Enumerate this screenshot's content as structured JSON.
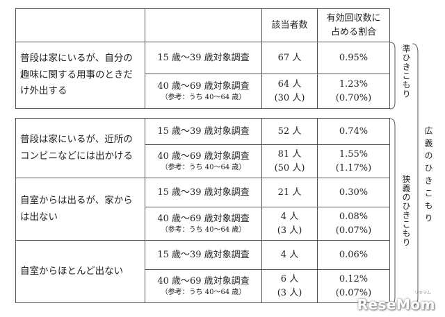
{
  "header": {
    "count": "該当者数",
    "ratio_line1": "有効回収数に",
    "ratio_line2": "占める割合"
  },
  "groups": [
    {
      "desc": "普段は家にいるが、自分の趣味に関する用事のときだけ外出する",
      "young": {
        "survey": "15 歳～39 歳対象調査",
        "count": "67 人",
        "ratio": "0.95%"
      },
      "old": {
        "survey": "40 歳～69 歳対象調査",
        "ref": "（参考：うち 40～64 歳）",
        "count": "64 人",
        "count_ref": "(30 人)",
        "ratio": "1.23%",
        "ratio_ref": "(0.70%)"
      }
    },
    {
      "desc": "普段は家にいるが、近所のコンビニなどには出かける",
      "young": {
        "survey": "15 歳～39 歳対象調査",
        "count": "52 人",
        "ratio": "0.74%"
      },
      "old": {
        "survey": "40 歳～69 歳対象調査",
        "ref": "（参考：うち 40～64 歳）",
        "count": "81 人",
        "count_ref": "(50 人)",
        "ratio": "1.55%",
        "ratio_ref": "(1.17%)"
      }
    },
    {
      "desc": "自室からは出るが、家からは出ない",
      "young": {
        "survey": "15 歳～39 歳対象調査",
        "count": "21 人",
        "ratio": "0.30%"
      },
      "old": {
        "survey": "40 歳～69 歳対象調査",
        "ref": "（参考：うち 40～64 歳）",
        "count": "4 人",
        "count_ref": "(3 人)",
        "ratio": "0.08%",
        "ratio_ref": "(0.07%)"
      }
    },
    {
      "desc": "自室からほとんど出ない",
      "young": {
        "survey": "15 歳～39 歳対象調査",
        "count": "4 人",
        "ratio": "0.06%"
      },
      "old": {
        "survey": "40 歳～69 歳対象調査",
        "ref": "（参考：うち 40～64 歳）",
        "count": "6 人",
        "count_ref": "(3 人)",
        "ratio": "0.12%",
        "ratio_ref": "(0.07%)"
      }
    }
  ],
  "labels": {
    "jun": "準ひきこもり",
    "kyogi": "狭義のひきこもり",
    "kogi": "広義のひきこもり"
  },
  "watermark": {
    "logo": "ReseMom",
    "sub": "リセマム"
  }
}
